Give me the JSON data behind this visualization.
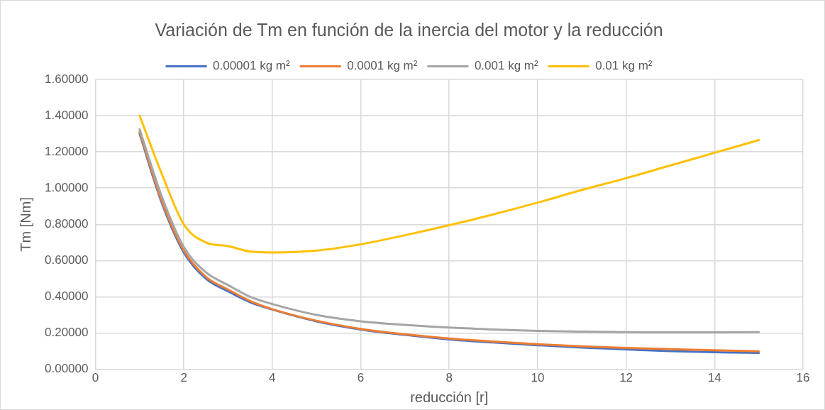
{
  "chart_data": {
    "type": "line",
    "title": "Variación de Tm en función de la inercia del motor y la reducción",
    "xlabel": "reducción [r]",
    "ylabel": "Tm [Nm]",
    "x": [
      1,
      1.5,
      2,
      2.5,
      3,
      3.5,
      4,
      5,
      6,
      7,
      8,
      9,
      10,
      11,
      12,
      13,
      14,
      15
    ],
    "series": [
      {
        "name": "0.00001 kg m²",
        "color": "#4472c4",
        "values": [
          1.3,
          0.92,
          0.645,
          0.5,
          0.43,
          0.37,
          0.33,
          0.265,
          0.22,
          0.19,
          0.165,
          0.148,
          0.133,
          0.12,
          0.11,
          0.1,
          0.094,
          0.09
        ]
      },
      {
        "name": "0.0001 kg m²",
        "color": "#ed7d31",
        "values": [
          1.31,
          0.93,
          0.655,
          0.51,
          0.44,
          0.377,
          0.332,
          0.268,
          0.223,
          0.193,
          0.17,
          0.153,
          0.138,
          0.127,
          0.118,
          0.111,
          0.105,
          0.099
        ]
      },
      {
        "name": "0.001 kg m²",
        "color": "#a5a5a5",
        "values": [
          1.325,
          0.955,
          0.675,
          0.535,
          0.465,
          0.4,
          0.36,
          0.3,
          0.265,
          0.245,
          0.23,
          0.22,
          0.212,
          0.208,
          0.205,
          0.204,
          0.204,
          0.205
        ]
      },
      {
        "name": "0.01 kg m²",
        "color": "#ffc000",
        "values": [
          1.4,
          1.08,
          0.8,
          0.7,
          0.68,
          0.65,
          0.645,
          0.655,
          0.69,
          0.74,
          0.795,
          0.855,
          0.92,
          0.99,
          1.055,
          1.125,
          1.195,
          1.265
        ]
      }
    ],
    "xlim": [
      0,
      16
    ],
    "xticks": [
      0,
      2,
      4,
      6,
      8,
      10,
      12,
      14,
      16
    ],
    "ylim": [
      0,
      1.6
    ],
    "yticks": [
      {
        "value": 0,
        "label": "0.00000"
      },
      {
        "value": 0.2,
        "label": "0.20000"
      },
      {
        "value": 0.4,
        "label": "0.40000"
      },
      {
        "value": 0.6,
        "label": "0.60000"
      },
      {
        "value": 0.8,
        "label": "0.80000"
      },
      {
        "value": 1,
        "label": "1.00000"
      },
      {
        "value": 1.2,
        "label": "1.20000"
      },
      {
        "value": 1.4,
        "label": "1.40000"
      },
      {
        "value": 1.6,
        "label": "1.60000"
      }
    ],
    "grid": true,
    "legend": "top",
    "marker": "none",
    "line_style": "solid"
  }
}
